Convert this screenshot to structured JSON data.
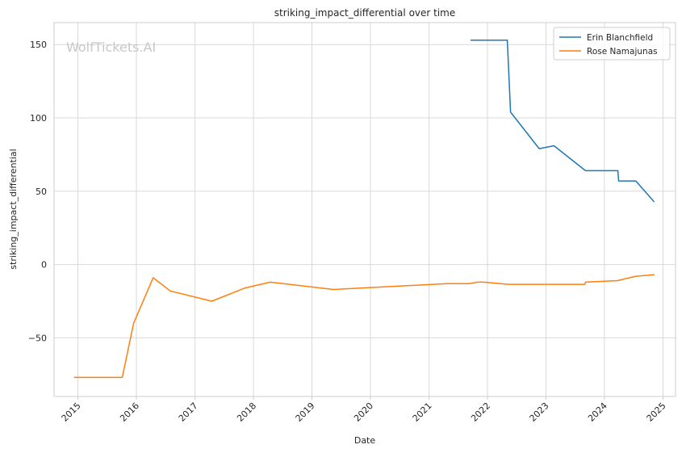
{
  "chart_data": {
    "type": "line",
    "title": "striking_impact_differential over time",
    "xlabel": "Date",
    "ylabel": "striking_impact_differential",
    "watermark": "WolfTickets.AI",
    "x_axis_type": "date",
    "xlim": [
      "2014-08-05",
      "2025-03-20"
    ],
    "ylim": [
      -90,
      165
    ],
    "x_ticks": [
      "2015",
      "2016",
      "2017",
      "2018",
      "2019",
      "2020",
      "2021",
      "2022",
      "2023",
      "2024",
      "2025"
    ],
    "y_ticks": [
      150,
      100,
      50,
      0,
      -50
    ],
    "y_tick_labels": [
      "150",
      "100",
      "50",
      "0",
      "−50"
    ],
    "grid": true,
    "legend_position": "top-right",
    "series": [
      {
        "name": "Erin Blanchfield",
        "color": "#1f77b4",
        "points": [
          {
            "x": "2021-09-20",
            "y": 153
          },
          {
            "x": "2022-05-05",
            "y": 153
          },
          {
            "x": "2022-05-25",
            "y": 104
          },
          {
            "x": "2022-11-20",
            "y": 79
          },
          {
            "x": "2023-02-20",
            "y": 81
          },
          {
            "x": "2023-09-05",
            "y": 64
          },
          {
            "x": "2024-03-25",
            "y": 64
          },
          {
            "x": "2024-03-30",
            "y": 57
          },
          {
            "x": "2024-07-15",
            "y": 57
          },
          {
            "x": "2024-11-05",
            "y": 43
          }
        ]
      },
      {
        "name": "Rose Namajunas",
        "color": "#ff7f0e",
        "points": [
          {
            "x": "2014-12-10",
            "y": -77
          },
          {
            "x": "2015-10-05",
            "y": -77
          },
          {
            "x": "2015-12-15",
            "y": -40
          },
          {
            "x": "2016-04-15",
            "y": -9
          },
          {
            "x": "2016-07-30",
            "y": -18
          },
          {
            "x": "2017-04-15",
            "y": -25
          },
          {
            "x": "2017-11-10",
            "y": -16
          },
          {
            "x": "2018-04-15",
            "y": -12
          },
          {
            "x": "2019-05-15",
            "y": -17
          },
          {
            "x": "2021-04-25",
            "y": -13
          },
          {
            "x": "2021-09-10",
            "y": -13
          },
          {
            "x": "2021-11-01",
            "y": -12
          },
          {
            "x": "2021-12-10",
            "y": -12
          },
          {
            "x": "2022-05-10",
            "y": -13.5
          },
          {
            "x": "2023-09-01",
            "y": -13.5
          },
          {
            "x": "2023-09-05",
            "y": -12
          },
          {
            "x": "2024-03-20",
            "y": -11
          },
          {
            "x": "2024-07-15",
            "y": -8
          },
          {
            "x": "2024-11-05",
            "y": -7
          }
        ]
      }
    ]
  }
}
